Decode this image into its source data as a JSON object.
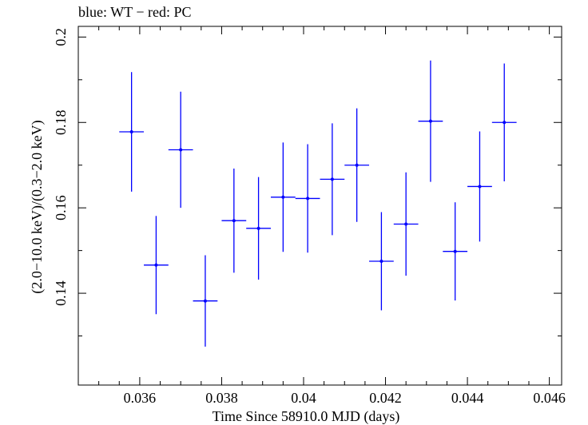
{
  "chart_data": {
    "type": "scatter",
    "title": "blue: WT − red: PC",
    "xlabel": "Time Since 58910.0 MJD (days)",
    "ylabel": "(2.0−10.0 keV)/(0.3−2.0 keV)",
    "xlim": [
      0.0345,
      0.0463
    ],
    "ylim": [
      0.1185,
      0.2025
    ],
    "x_ticks": [
      {
        "value": 0.036,
        "label": "0.036"
      },
      {
        "value": 0.038,
        "label": "0.038"
      },
      {
        "value": 0.04,
        "label": "0.04"
      },
      {
        "value": 0.042,
        "label": "0.042"
      },
      {
        "value": 0.044,
        "label": "0.044"
      },
      {
        "value": 0.046,
        "label": "0.046"
      }
    ],
    "y_ticks": [
      {
        "value": 0.14,
        "label": "0.14"
      },
      {
        "value": 0.16,
        "label": "0.16"
      },
      {
        "value": 0.18,
        "label": "0.18"
      },
      {
        "value": 0.2,
        "label": "0.2"
      }
    ],
    "series": [
      {
        "name": "WT",
        "color": "#0000ff",
        "points": [
          {
            "x": 0.0358,
            "xerr": 0.0003,
            "y": 0.1778,
            "yerr": 0.014
          },
          {
            "x": 0.0364,
            "xerr": 0.0003,
            "y": 0.1466,
            "yerr": 0.0115
          },
          {
            "x": 0.037,
            "xerr": 0.0003,
            "y": 0.1736,
            "yerr": 0.0136
          },
          {
            "x": 0.0376,
            "xerr": 0.0003,
            "y": 0.1382,
            "yerr": 0.0107
          },
          {
            "x": 0.0383,
            "xerr": 0.0003,
            "y": 0.157,
            "yerr": 0.0122
          },
          {
            "x": 0.0389,
            "xerr": 0.0003,
            "y": 0.1552,
            "yerr": 0.012
          },
          {
            "x": 0.0395,
            "xerr": 0.0003,
            "y": 0.1625,
            "yerr": 0.0128
          },
          {
            "x": 0.0401,
            "xerr": 0.0003,
            "y": 0.1622,
            "yerr": 0.0127
          },
          {
            "x": 0.0407,
            "xerr": 0.0003,
            "y": 0.1667,
            "yerr": 0.0131
          },
          {
            "x": 0.0413,
            "xerr": 0.0003,
            "y": 0.17,
            "yerr": 0.0133
          },
          {
            "x": 0.0419,
            "xerr": 0.0003,
            "y": 0.1475,
            "yerr": 0.0115
          },
          {
            "x": 0.0425,
            "xerr": 0.0003,
            "y": 0.1562,
            "yerr": 0.0121
          },
          {
            "x": 0.0431,
            "xerr": 0.0003,
            "y": 0.1803,
            "yerr": 0.0142
          },
          {
            "x": 0.0437,
            "xerr": 0.0003,
            "y": 0.1498,
            "yerr": 0.0115
          },
          {
            "x": 0.0443,
            "xerr": 0.0003,
            "y": 0.165,
            "yerr": 0.0129
          },
          {
            "x": 0.0449,
            "xerr": 0.0003,
            "y": 0.18,
            "yerr": 0.0138
          }
        ]
      }
    ]
  }
}
